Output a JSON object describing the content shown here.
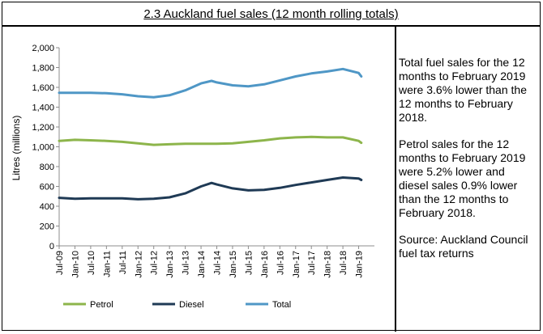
{
  "title": "2.3 Auckland fuel sales (12 month rolling totals)",
  "side_text": {
    "paragraphs": [
      "Total fuel sales for the 12 months to February 2019 were 3.6% lower than the 12 months to February 2018.",
      "Petrol sales for the 12 months to February 2019 were 5.2% lower and diesel sales 0.9% lower than the 12 months to February 2018.",
      "Source: Auckland Council fuel tax returns"
    ]
  },
  "chart_data": {
    "type": "line",
    "title": "",
    "xlabel": "",
    "ylabel": "Litres (millions)",
    "ylim": [
      0,
      2000
    ],
    "yticks": [
      0,
      200,
      400,
      600,
      800,
      1000,
      1200,
      1400,
      1600,
      1800,
      2000
    ],
    "ytick_labels": [
      "0",
      "200",
      "400",
      "600",
      "800",
      "1,000",
      "1,200",
      "1,400",
      "1,600",
      "1,800",
      "2,000"
    ],
    "xtick_labels": [
      "Jul-09",
      "Jan-10",
      "Jul-10",
      "Jan-11",
      "Jul-11",
      "Jan-12",
      "Jul-12",
      "Jan-13",
      "Jul-13",
      "Jan-14",
      "Jul-14",
      "Jan-15",
      "Jul-15",
      "Jan-16",
      "Jul-16",
      "Jan-17",
      "Jul-17",
      "Jan-18",
      "Jul-18",
      "Jan-19"
    ],
    "x": [
      "Jul-09",
      "Jan-10",
      "Jul-10",
      "Jan-11",
      "Jul-11",
      "Jan-12",
      "Jul-12",
      "Jan-13",
      "Jul-13",
      "Jan-14",
      "May-14",
      "Jul-14",
      "Jan-15",
      "Jul-15",
      "Jan-16",
      "Jul-16",
      "Jan-17",
      "Jul-17",
      "Jan-18",
      "Jul-18",
      "Jan-19",
      "Feb-19"
    ],
    "grid": false,
    "legend": "bottom",
    "series": [
      {
        "name": "Petrol",
        "color": "#8db54b",
        "values": [
          1060,
          1070,
          1065,
          1060,
          1050,
          1035,
          1020,
          1025,
          1030,
          1030,
          1030,
          1030,
          1035,
          1050,
          1065,
          1085,
          1095,
          1100,
          1095,
          1095,
          1060,
          1040
        ]
      },
      {
        "name": "Diesel",
        "color": "#1f3a55",
        "values": [
          485,
          475,
          480,
          480,
          480,
          470,
          475,
          490,
          530,
          600,
          635,
          620,
          580,
          560,
          565,
          585,
          615,
          640,
          665,
          690,
          680,
          665
        ]
      },
      {
        "name": "Total",
        "color": "#4f97c6",
        "values": [
          1545,
          1545,
          1545,
          1540,
          1530,
          1510,
          1500,
          1520,
          1570,
          1640,
          1665,
          1650,
          1620,
          1610,
          1630,
          1670,
          1710,
          1740,
          1760,
          1785,
          1745,
          1710
        ]
      }
    ]
  }
}
